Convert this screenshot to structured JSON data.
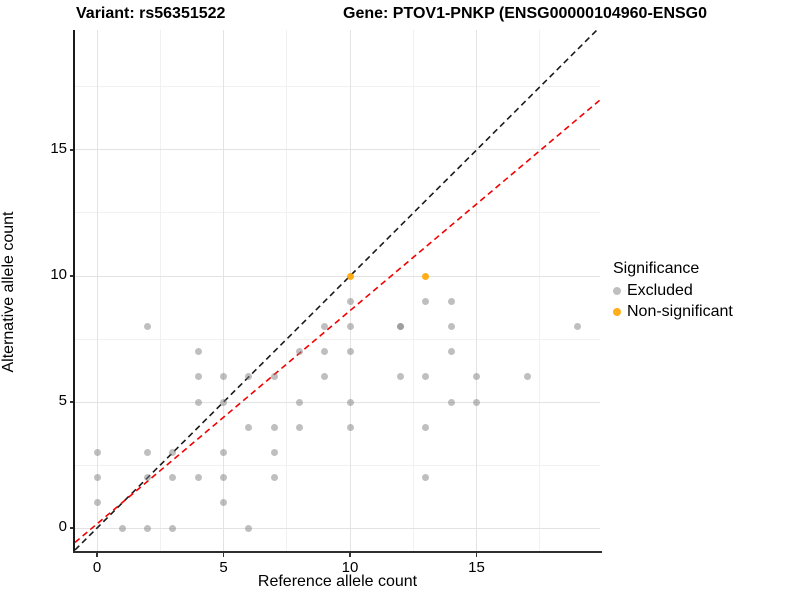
{
  "header": {
    "variant_title": "Variant: rs56351522",
    "gene_title": "Gene: PTOV1-PNKP (ENSG00000104960-ENSG0"
  },
  "chart_data": {
    "type": "scatter",
    "title_left": "Variant: rs56351522",
    "title_right": "Gene: PTOV1-PNKP (ENSG00000104960-ENSG0",
    "xlabel": "Reference allele count",
    "ylabel": "Alternative allele count",
    "xlim": [
      -0.87,
      19.88
    ],
    "ylim": [
      -0.95,
      19.76
    ],
    "x_ticks": [
      0,
      5,
      10,
      15
    ],
    "y_ticks": [
      0,
      5,
      10,
      15
    ],
    "x_minor": [
      2.5,
      7.5,
      12.5,
      17.5
    ],
    "y_minor": [
      2.5,
      7.5,
      12.5,
      17.5
    ],
    "grid": true,
    "legend": {
      "title": "Significance",
      "position": "right"
    },
    "series": [
      {
        "name": "Excluded",
        "color": "#808080",
        "opacity": 0.5,
        "marker_px": 7,
        "points": [
          [
            0,
            1
          ],
          [
            0,
            2
          ],
          [
            0,
            3
          ],
          [
            1,
            0
          ],
          [
            2,
            0
          ],
          [
            2,
            2
          ],
          [
            2,
            3
          ],
          [
            2,
            8
          ],
          [
            3,
            0
          ],
          [
            3,
            2
          ],
          [
            3,
            3
          ],
          [
            4,
            2
          ],
          [
            4,
            5
          ],
          [
            4,
            6
          ],
          [
            4,
            7
          ],
          [
            5,
            1
          ],
          [
            5,
            2
          ],
          [
            5,
            3
          ],
          [
            5,
            5
          ],
          [
            5,
            6
          ],
          [
            6,
            0
          ],
          [
            6,
            4
          ],
          [
            6,
            6
          ],
          [
            7,
            2
          ],
          [
            7,
            3
          ],
          [
            7,
            4
          ],
          [
            7,
            6
          ],
          [
            8,
            4
          ],
          [
            8,
            5
          ],
          [
            8,
            7
          ],
          [
            9,
            6
          ],
          [
            9,
            7
          ],
          [
            9,
            8
          ],
          [
            10,
            4
          ],
          [
            10,
            5
          ],
          [
            10,
            7
          ],
          [
            10,
            8
          ],
          [
            10,
            9
          ],
          [
            12,
            6
          ],
          [
            12,
            8
          ],
          [
            12,
            8
          ],
          [
            13,
            2
          ],
          [
            13,
            4
          ],
          [
            13,
            6
          ],
          [
            13,
            9
          ],
          [
            14,
            5
          ],
          [
            14,
            7
          ],
          [
            14,
            8
          ],
          [
            14,
            9
          ],
          [
            15,
            5
          ],
          [
            15,
            6
          ],
          [
            17,
            6
          ],
          [
            19,
            8
          ]
        ]
      },
      {
        "name": "Non-significant",
        "color": "#ffa500",
        "opacity": 0.9,
        "marker_px": 7,
        "points": [
          [
            10,
            10
          ],
          [
            13,
            10
          ]
        ]
      }
    ],
    "ref_lines": [
      {
        "name": "identity-line",
        "color": "#1a1a1a",
        "dash": true,
        "slope": 1,
        "intercept": 0
      },
      {
        "name": "regression-line",
        "color": "#f20000",
        "dash": true,
        "slope": 0.846,
        "intercept": 0.165
      }
    ]
  }
}
